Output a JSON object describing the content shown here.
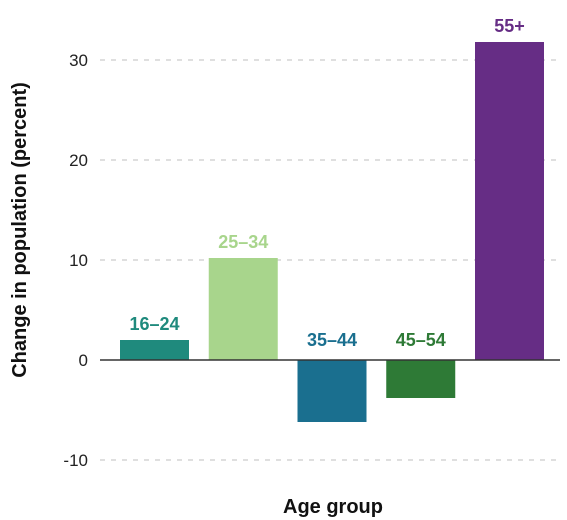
{
  "chart_data": {
    "type": "bar",
    "categories": [
      "16–24",
      "25–34",
      "35–44",
      "45–54",
      "55+"
    ],
    "values": [
      2,
      10.2,
      -6.2,
      -3.8,
      31.8
    ],
    "colors": [
      "#1f8a7d",
      "#a8d58c",
      "#1a6f8f",
      "#2e7a36",
      "#662d85"
    ],
    "xlabel": "Age group",
    "ylabel": "Change in population (percent)",
    "yticks": [
      -10,
      0,
      10,
      20,
      30
    ],
    "ylim": [
      -12,
      33
    ],
    "grid": true,
    "legend": "none"
  }
}
